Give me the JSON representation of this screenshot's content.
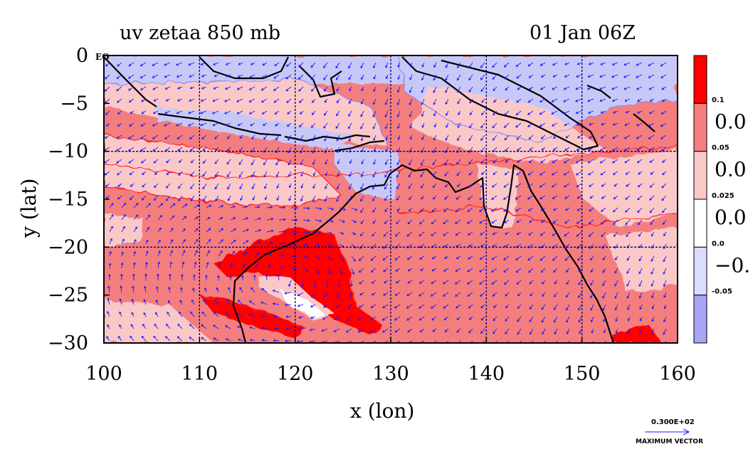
{
  "chart_data": {
    "type": "heatmap",
    "title": "uv zetaa 850 mb",
    "time_label": "01 Jan 06Z",
    "xlabel": "x (lon)",
    "ylabel": "y (lat)",
    "xlim": [
      100,
      160
    ],
    "ylim": [
      -30,
      0
    ],
    "x_ticks": [
      "100",
      "110",
      "120",
      "130",
      "140",
      "150",
      "160"
    ],
    "y_ticks": [
      "0",
      "−5",
      "−10",
      "−15",
      "−20",
      "−25",
      "−30"
    ],
    "grid": true,
    "eq_label": "EQ",
    "colorbar": {
      "ticks": [
        "0.1",
        "0.05",
        "0.025",
        "0.0",
        "-0.05"
      ],
      "side_labels": [
        "0.0",
        "0.0",
        "0.0",
        "−0."
      ],
      "colors": [
        "#ff0000",
        "#f47e7e",
        "#fbc8c8",
        "#ffffff",
        "#dcdcff",
        "#a6a6f4"
      ]
    },
    "vector_scale": {
      "value_label": "0.300E+02",
      "caption": "MAXIMUM VECTOR"
    },
    "colors": {
      "strong_pos": "#ff0000",
      "pos": "#f47e7e",
      "weak_pos": "#fbc8c8",
      "neutral": "#ffffff",
      "neg": "#c8c8f8",
      "contour_pos": "#ff1a1a",
      "contour_neg": "#8c8cf0",
      "vectors": "#1a1aff",
      "coast": "#000000",
      "grid": "#00006e"
    }
  }
}
